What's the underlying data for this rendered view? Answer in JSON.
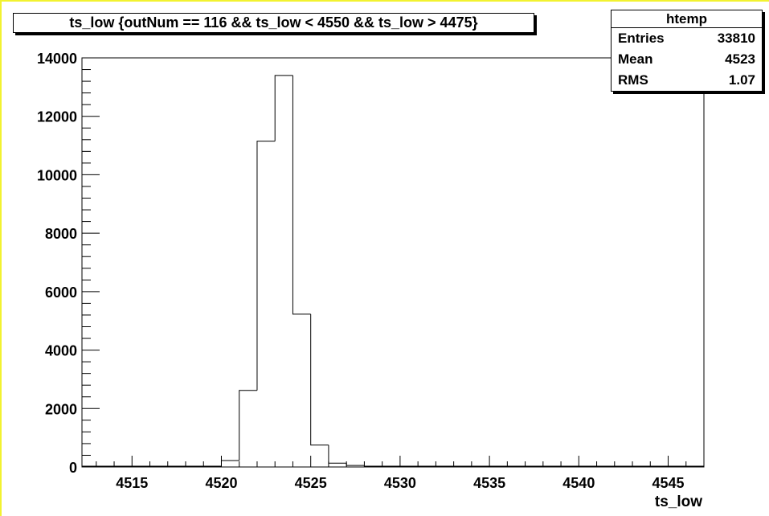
{
  "chart_data": {
    "type": "bar",
    "title": "ts_low {outNum == 116 && ts_low < 4550 && ts_low > 4475}",
    "xlabel": "ts_low",
    "ylabel": "",
    "xlim": [
      4512.2,
      4547
    ],
    "ylim": [
      0,
      14000
    ],
    "x_ticks": [
      4515,
      4520,
      4525,
      4530,
      4535,
      4540,
      4545
    ],
    "y_ticks": [
      0,
      2000,
      4000,
      6000,
      8000,
      10000,
      12000,
      14000
    ],
    "bin_width": 1,
    "bins": [
      {
        "x0": 4520,
        "value": 220
      },
      {
        "x0": 4521,
        "value": 2620
      },
      {
        "x0": 4522,
        "value": 11150
      },
      {
        "x0": 4523,
        "value": 13400
      },
      {
        "x0": 4524,
        "value": 5230
      },
      {
        "x0": 4525,
        "value": 750
      },
      {
        "x0": 4526,
        "value": 130
      },
      {
        "x0": 4527,
        "value": 50
      },
      {
        "x0": 4528,
        "value": 15
      },
      {
        "x0": 4529,
        "value": 5
      }
    ],
    "grid": false,
    "legend": "none",
    "line_color": "#000000",
    "stats": {
      "name": "htemp",
      "rows": [
        {
          "label": "Entries",
          "value": "33810"
        },
        {
          "label": "Mean",
          "value": "4523"
        },
        {
          "label": "RMS",
          "value": "1.07"
        }
      ]
    }
  }
}
